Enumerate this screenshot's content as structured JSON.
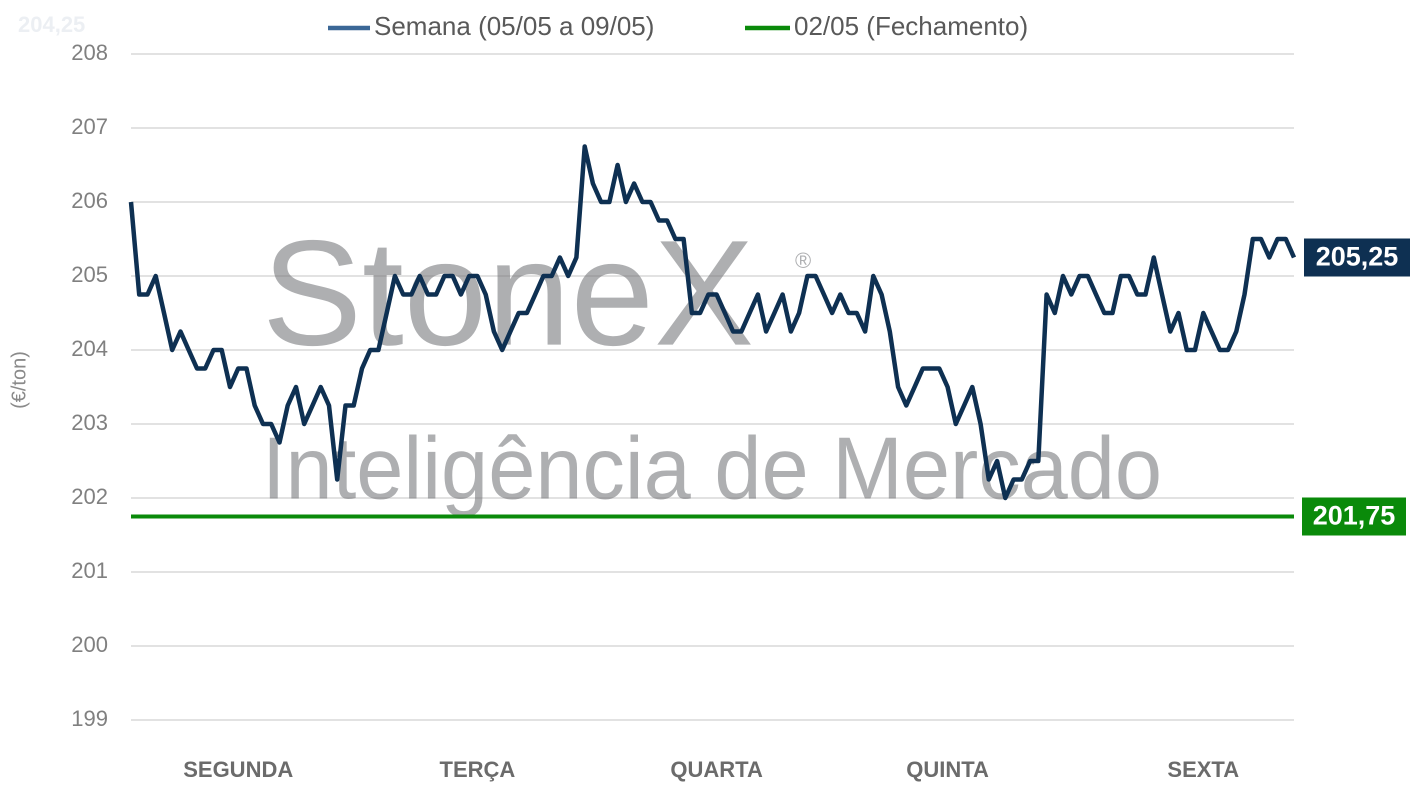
{
  "chart_data": {
    "type": "line",
    "y_label": "(€/ton)",
    "corner_label": "204,25",
    "watermark": {
      "brand": "StoneX",
      "mark": "®",
      "subtitle": "Inteligência de Mercado"
    },
    "ylim": [
      199,
      208
    ],
    "yticks": [
      199,
      200,
      201,
      202,
      203,
      204,
      205,
      206,
      207,
      208
    ],
    "xlim": [
      0,
      141
    ],
    "xticks": [
      {
        "value": 13,
        "label": "SEGUNDA"
      },
      {
        "value": 42,
        "label": "TERÇA"
      },
      {
        "value": 71,
        "label": "QUARTA"
      },
      {
        "value": 99,
        "label": "QUINTA"
      },
      {
        "value": 130,
        "label": "SEXTA"
      }
    ],
    "grid": true,
    "series": [
      {
        "name": "Semana (05/05 a 09/05)",
        "color": "#0e3052",
        "legend_color": "#3b6796",
        "end_label": "205,25",
        "values": [
          206.0,
          204.75,
          204.75,
          205.0,
          204.5,
          204.0,
          204.25,
          204.0,
          203.75,
          203.75,
          204.0,
          204.0,
          203.5,
          203.75,
          203.75,
          203.25,
          203.0,
          203.0,
          202.75,
          203.25,
          203.5,
          203.0,
          203.25,
          203.5,
          203.25,
          202.25,
          203.25,
          203.25,
          203.75,
          204.0,
          204.0,
          204.5,
          205.0,
          204.75,
          204.75,
          205.0,
          204.75,
          204.75,
          205.0,
          205.0,
          204.75,
          205.0,
          205.0,
          204.75,
          204.25,
          204.0,
          204.25,
          204.5,
          204.5,
          204.75,
          205.0,
          205.0,
          205.25,
          205.0,
          205.25,
          206.75,
          206.25,
          206.0,
          206.0,
          206.5,
          206.0,
          206.25,
          206.0,
          206.0,
          205.75,
          205.75,
          205.5,
          205.5,
          204.5,
          204.5,
          204.75,
          204.75,
          204.5,
          204.25,
          204.25,
          204.5,
          204.75,
          204.25,
          204.5,
          204.75,
          204.25,
          204.5,
          205.0,
          205.0,
          204.75,
          204.5,
          204.75,
          204.5,
          204.5,
          204.25,
          205.0,
          204.75,
          204.25,
          203.5,
          203.25,
          203.5,
          203.75,
          203.75,
          203.75,
          203.5,
          203.0,
          203.25,
          203.5,
          203.0,
          202.25,
          202.5,
          202.0,
          202.25,
          202.25,
          202.5,
          202.5,
          204.75,
          204.5,
          205.0,
          204.75,
          205.0,
          205.0,
          204.75,
          204.5,
          204.5,
          205.0,
          205.0,
          204.75,
          204.75,
          205.25,
          204.75,
          204.25,
          204.5,
          204.0,
          204.0,
          204.5,
          204.25,
          204.0,
          204.0,
          204.25,
          204.75,
          205.5,
          205.5,
          205.25,
          205.5,
          205.5,
          205.25
        ]
      }
    ],
    "reference_line": {
      "name": "02/05 (Fechamento)",
      "value": 201.75,
      "label": "201,75",
      "color": "#0a8a0a"
    }
  }
}
